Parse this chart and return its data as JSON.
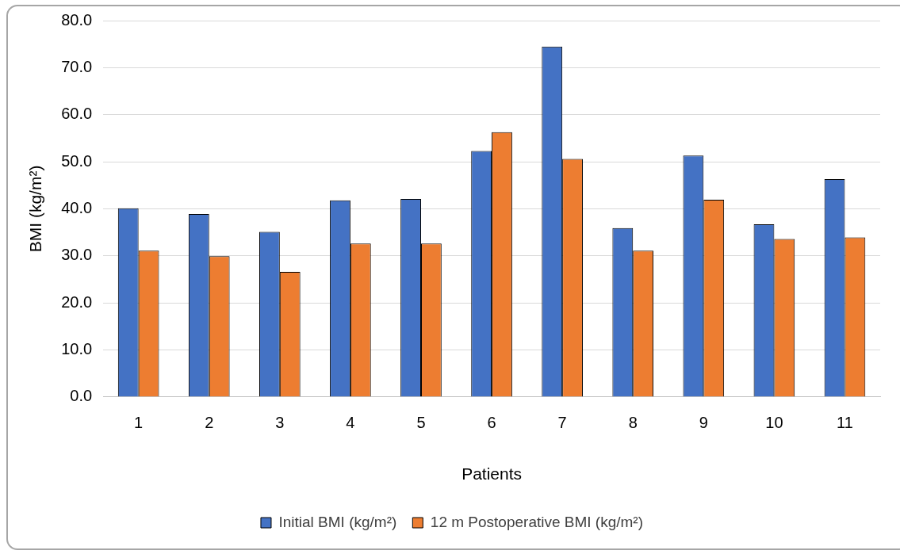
{
  "chart_data": {
    "type": "bar",
    "xlabel": "Patients",
    "ylabel": "BMI (kg/m²)",
    "categories": [
      "1",
      "2",
      "3",
      "4",
      "5",
      "6",
      "7",
      "8",
      "9",
      "10",
      "11"
    ],
    "series": [
      {
        "name": "Initial BMI (kg/m²)",
        "color": "#4472c4",
        "values": [
          40.1,
          38.9,
          35.1,
          41.8,
          42.1,
          52.3,
          74.5,
          35.9,
          51.3,
          36.7,
          46.3
        ]
      },
      {
        "name": "12 m Postoperative BMI (kg/m²)",
        "color": "#ed7d31",
        "values": [
          31.1,
          29.9,
          26.6,
          32.6,
          32.6,
          56.3,
          50.6,
          31.1,
          41.9,
          33.6,
          33.9
        ]
      }
    ],
    "ylim": [
      0,
      80
    ],
    "yticks": [
      {
        "value": 0,
        "label": "0.0"
      },
      {
        "value": 10,
        "label": "10.0"
      },
      {
        "value": 20,
        "label": "20.0"
      },
      {
        "value": 30,
        "label": "30.0"
      },
      {
        "value": 40,
        "label": "40.0"
      },
      {
        "value": 50,
        "label": "50.0"
      },
      {
        "value": 60,
        "label": "60.0"
      },
      {
        "value": 70,
        "label": "70.0"
      },
      {
        "value": 80,
        "label": "80.0"
      }
    ],
    "grid": "y",
    "legend": "bottom"
  }
}
